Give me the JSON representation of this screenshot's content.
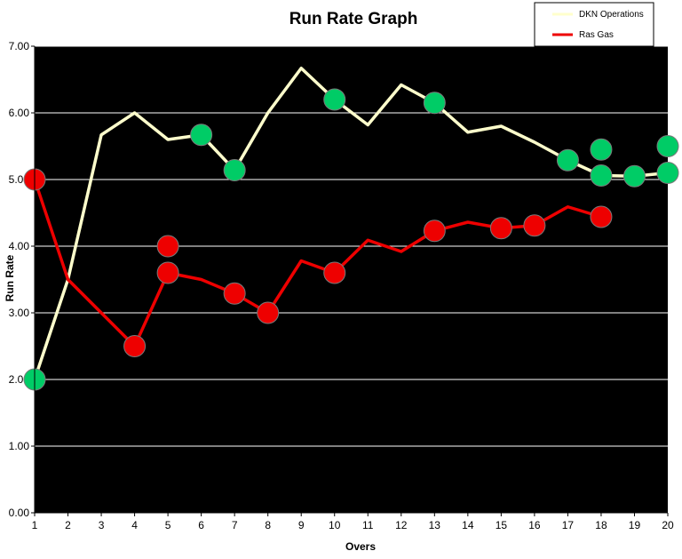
{
  "chart_data": {
    "type": "line",
    "title": "Run Rate Graph",
    "xlabel": "Overs",
    "ylabel": "Run Rate",
    "categories": [
      "1",
      "2",
      "3",
      "4",
      "5",
      "6",
      "7",
      "8",
      "9",
      "10",
      "11",
      "12",
      "13",
      "14",
      "15",
      "16",
      "17",
      "18",
      "19",
      "20"
    ],
    "ylim": [
      0,
      7
    ],
    "y_ticks": [
      "0.00",
      "1.00",
      "2.00",
      "3.00",
      "4.00",
      "5.00",
      "6.00",
      "7.00"
    ],
    "grid": true,
    "legend": "top-right",
    "series": [
      {
        "name": "DKN Operations",
        "color": "#ffffcc",
        "values": [
          2.0,
          3.5,
          5.67,
          6.0,
          5.6,
          5.67,
          5.14,
          6.0,
          6.67,
          6.2,
          5.82,
          6.42,
          6.15,
          5.71,
          5.8,
          5.56,
          5.29,
          5.06,
          5.05,
          5.1
        ],
        "wickets": [
          {
            "x": 1,
            "y": 2.0
          },
          {
            "x": 6,
            "y": 5.67
          },
          {
            "x": 7,
            "y": 5.14
          },
          {
            "x": 10,
            "y": 6.2
          },
          {
            "x": 13,
            "y": 6.15
          },
          {
            "x": 17,
            "y": 5.29
          },
          {
            "x": 18,
            "y": 5.45
          },
          {
            "x": 18,
            "y": 5.06
          },
          {
            "x": 19,
            "y": 5.05
          },
          {
            "x": 20,
            "y": 5.1
          },
          {
            "x": 20,
            "y": 5.5
          }
        ],
        "marker_color": "#00cc66"
      },
      {
        "name": "Ras Gas",
        "color": "#ee0000",
        "values": [
          5.0,
          3.5,
          3.0,
          2.5,
          3.6,
          3.5,
          3.29,
          3.0,
          3.78,
          3.6,
          4.09,
          3.92,
          4.23,
          4.36,
          4.27,
          4.31,
          4.59,
          4.44,
          null,
          null
        ],
        "wickets": [
          {
            "x": 1,
            "y": 5.0
          },
          {
            "x": 4,
            "y": 2.5
          },
          {
            "x": 5,
            "y": 4.0
          },
          {
            "x": 5,
            "y": 3.6
          },
          {
            "x": 7,
            "y": 3.29
          },
          {
            "x": 8,
            "y": 3.0
          },
          {
            "x": 10,
            "y": 3.6
          },
          {
            "x": 13,
            "y": 4.23
          },
          {
            "x": 15,
            "y": 4.27
          },
          {
            "x": 16,
            "y": 4.31
          },
          {
            "x": 18,
            "y": 4.44
          }
        ],
        "marker_color": "#ee0000"
      }
    ],
    "plot_background": "#000000",
    "gridline_color": "#ffffff"
  }
}
